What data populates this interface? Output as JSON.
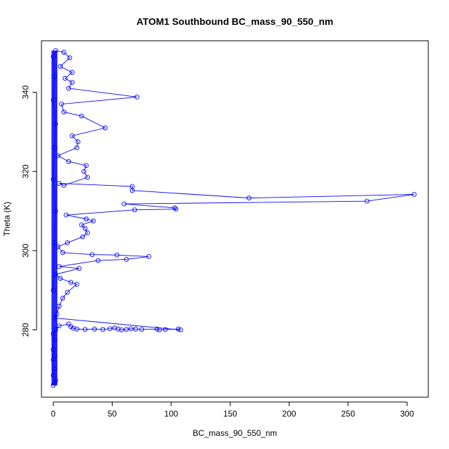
{
  "chart_data": {
    "type": "scatter",
    "title": "ATOM1 Southbound BC_mass_90_550_nm",
    "xlabel": "BC_mass_90_550_nm",
    "ylabel": "Theta (K)",
    "xlim": [
      -10,
      318
    ],
    "ylim": [
      263,
      353
    ],
    "xticks": [
      0,
      50,
      100,
      150,
      200,
      250,
      300
    ],
    "yticks": [
      280,
      300,
      320,
      340
    ],
    "grid": false,
    "legend": "none",
    "color": "#0000ff",
    "series": [
      {
        "points": [
          [
            0,
            266
          ],
          [
            1,
            266.5
          ],
          [
            2,
            267.2
          ],
          [
            0,
            268.5
          ],
          [
            1,
            270.2
          ],
          [
            0,
            272.5
          ],
          [
            1,
            273.5
          ],
          [
            0,
            275
          ],
          [
            1,
            277.5
          ],
          [
            0,
            279
          ],
          [
            2,
            280
          ],
          [
            5,
            281
          ],
          [
            13,
            281.5
          ],
          [
            15,
            280.8
          ],
          [
            17,
            280.4
          ],
          [
            20,
            280.2
          ],
          [
            27,
            280.1
          ],
          [
            35,
            280.2
          ],
          [
            42,
            280.1
          ],
          [
            48,
            280.3
          ],
          [
            52,
            280.5
          ],
          [
            55,
            280.2
          ],
          [
            58,
            280
          ],
          [
            62,
            280.1
          ],
          [
            66,
            280.3
          ],
          [
            70,
            280.2
          ],
          [
            75,
            280.1
          ],
          [
            88,
            280.2
          ],
          [
            90,
            280
          ],
          [
            95,
            280.1
          ],
          [
            106,
            280.2
          ],
          [
            108,
            280
          ],
          [
            1,
            283
          ],
          [
            3,
            284
          ],
          [
            5,
            286
          ],
          [
            8,
            288
          ],
          [
            12,
            289.5
          ],
          [
            20,
            291.5
          ],
          [
            15,
            292
          ],
          [
            6,
            293
          ],
          [
            2,
            294
          ],
          [
            22,
            295.5
          ],
          [
            5,
            296
          ],
          [
            38,
            297.5
          ],
          [
            62,
            297.8
          ],
          [
            81,
            298.5
          ],
          [
            54,
            298.9
          ],
          [
            33,
            299
          ],
          [
            8,
            299.5
          ],
          [
            4,
            301
          ],
          [
            12,
            302
          ],
          [
            25,
            303.5
          ],
          [
            29,
            304.5
          ],
          [
            27,
            305.6
          ],
          [
            24,
            306.5
          ],
          [
            34,
            307.5
          ],
          [
            28,
            308
          ],
          [
            11,
            309
          ],
          [
            69,
            310.3
          ],
          [
            104,
            310.5
          ],
          [
            103,
            310.8
          ],
          [
            60,
            311.8
          ],
          [
            266,
            312.5
          ],
          [
            306,
            314.2
          ],
          [
            166,
            313.3
          ],
          [
            67,
            315.2
          ],
          [
            67,
            316.2
          ],
          [
            5,
            317
          ],
          [
            9,
            316.5
          ],
          [
            29,
            318.5
          ],
          [
            26,
            320
          ],
          [
            28,
            321.5
          ],
          [
            13,
            322.5
          ],
          [
            4,
            324
          ],
          [
            20,
            326
          ],
          [
            21,
            327.5
          ],
          [
            16,
            329
          ],
          [
            44,
            331
          ],
          [
            24,
            334
          ],
          [
            9,
            335
          ],
          [
            7,
            337
          ],
          [
            71,
            338.8
          ],
          [
            13,
            341
          ],
          [
            16,
            342.5
          ],
          [
            10,
            343.5
          ],
          [
            16,
            345
          ],
          [
            6,
            346.5
          ],
          [
            14,
            348.7
          ],
          [
            9,
            350.1
          ],
          [
            2,
            350.5
          ],
          [
            0,
            349
          ],
          [
            1,
            344
          ],
          [
            0,
            338
          ],
          [
            2,
            332
          ],
          [
            1,
            326
          ],
          [
            0,
            318
          ],
          [
            2,
            310
          ],
          [
            1,
            302
          ],
          [
            0,
            290
          ]
        ]
      }
    ]
  }
}
